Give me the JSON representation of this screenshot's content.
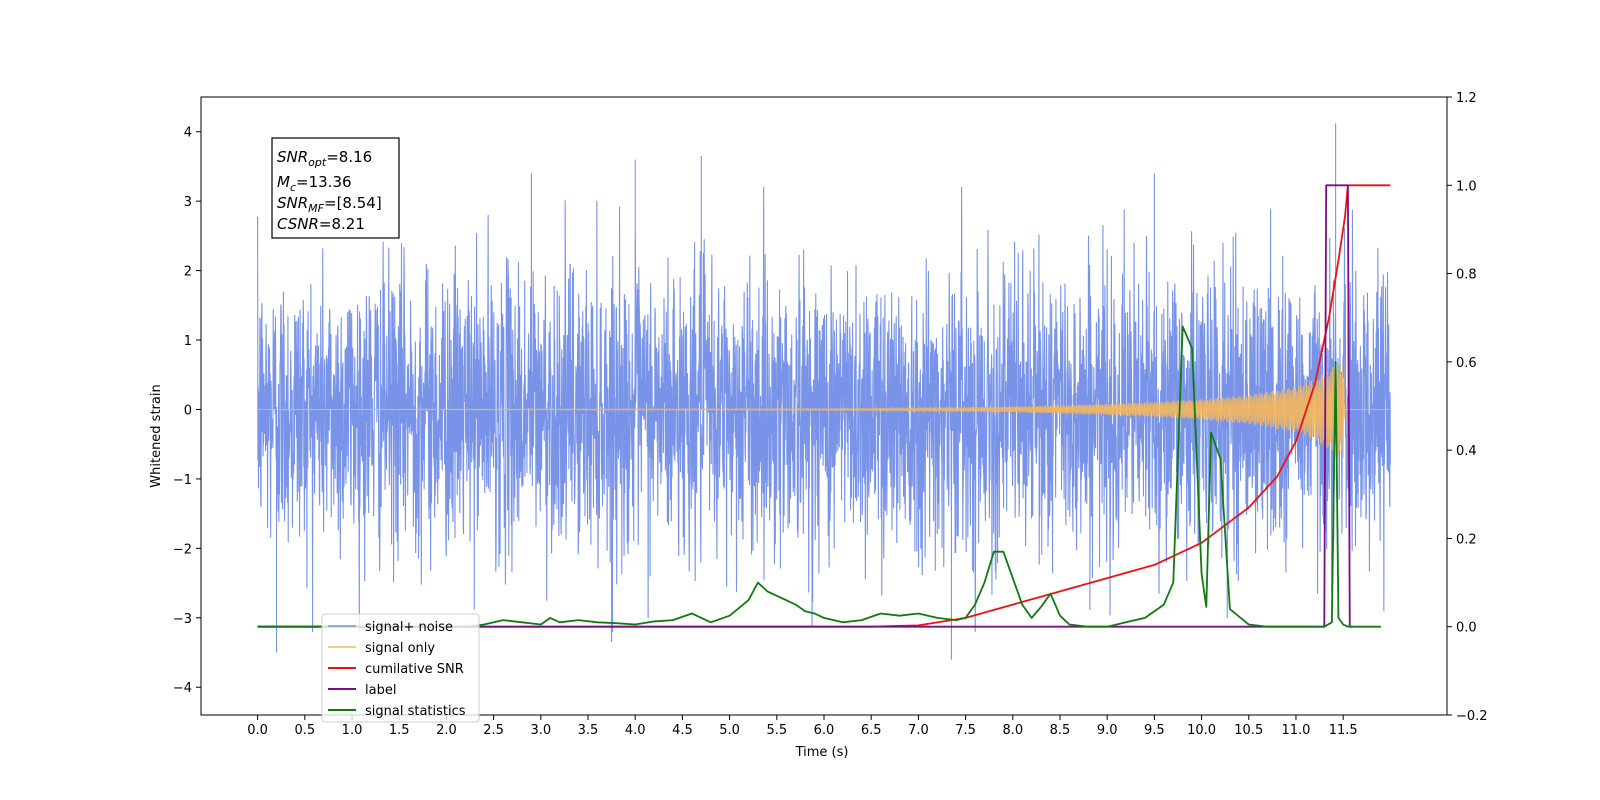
{
  "chart_data": {
    "type": "line",
    "xlabel": "Time (s)",
    "ylabel": "Whitened strain",
    "xlim": [
      -0.6,
      12.6
    ],
    "ylim": [
      -4.4,
      4.5
    ],
    "ylim_right": [
      -0.2,
      1.2
    ],
    "x_ticks": [
      0.0,
      0.5,
      1.0,
      1.5,
      2.0,
      2.5,
      3.0,
      3.5,
      4.0,
      4.5,
      5.0,
      5.5,
      6.0,
      6.5,
      7.0,
      7.5,
      8.0,
      8.5,
      9.0,
      9.5,
      10.0,
      10.5,
      11.0,
      11.5
    ],
    "x_tick_labels": [
      "0.0",
      "0.5",
      "1.0",
      "1.5",
      "2.0",
      "2.5",
      "3.0",
      "3.5",
      "4.0",
      "4.5",
      "5.0",
      "5.5",
      "6.0",
      "6.5",
      "7.0",
      "7.5",
      "8.0",
      "8.5",
      "9.0",
      "9.5",
      "10.0",
      "10.5",
      "11.0",
      "11.5"
    ],
    "y_ticks": [
      -4,
      -3,
      -2,
      -1,
      0,
      1,
      2,
      3,
      4
    ],
    "y_tick_labels": [
      "−4",
      "−3",
      "−2",
      "−1",
      "0",
      "1",
      "2",
      "3",
      "4"
    ],
    "y_right_ticks": [
      -0.2,
      0.0,
      0.2,
      0.4,
      0.6,
      0.8,
      1.0,
      1.2
    ],
    "y_right_tick_labels": [
      "−0.2",
      "0.0",
      "0.2",
      "0.4",
      "0.6",
      "0.8",
      "1.0",
      "1.2"
    ],
    "grid": false,
    "legend_placement": "lower-left",
    "info_box": {
      "snr_opt_main": "SNR",
      "snr_opt_sub": "opt",
      "snr_opt_value": "=8.16",
      "mc_main": "M",
      "mc_sub": "c",
      "mc_value": "=13.36",
      "snr_mf_main": "SNR",
      "snr_mf_sub": "MF",
      "snr_mf_value": "=[8.54]",
      "csnr_main": "CSNR",
      "csnr_value": "=8.21"
    },
    "series": [
      {
        "name": "signal+ noise",
        "axis": "left",
        "color": "#7893e8",
        "description": "whitened noise plus signal, roughly gaussian with std ~1 over t=0..12; sampled envelope",
        "x_range": [
          0.0,
          12.0
        ],
        "approx_std": 1.0,
        "extreme_peaks": [
          [
            2.9,
            3.4
          ],
          [
            4.0,
            3.6
          ],
          [
            4.7,
            3.65
          ],
          [
            9.5,
            3.4
          ],
          [
            11.42,
            4.12
          ],
          [
            0.2,
            -3.5
          ],
          [
            7.35,
            -3.6
          ],
          [
            3.75,
            -3.35
          ]
        ]
      },
      {
        "name": "signal only",
        "color": "#f5b85c",
        "axis": "left",
        "description": "chirp signal growing from ~0 to amplitude ~0.7 near t=11.5 then zero",
        "envelope": [
          [
            0.0,
            0.0
          ],
          [
            6.0,
            0.01
          ],
          [
            7.0,
            0.02
          ],
          [
            7.5,
            0.03
          ],
          [
            8.0,
            0.04
          ],
          [
            8.5,
            0.06
          ],
          [
            9.0,
            0.08
          ],
          [
            9.5,
            0.11
          ],
          [
            10.0,
            0.15
          ],
          [
            10.5,
            0.21
          ],
          [
            11.0,
            0.33
          ],
          [
            11.2,
            0.45
          ],
          [
            11.4,
            0.62
          ],
          [
            11.5,
            0.7
          ],
          [
            11.52,
            0.0
          ],
          [
            12.0,
            0.0
          ]
        ]
      },
      {
        "name": "cumilative SNR",
        "color": "#ee1111",
        "axis": "right",
        "x": [
          0.0,
          6.5,
          7.0,
          7.5,
          8.0,
          8.5,
          9.0,
          9.5,
          10.0,
          10.5,
          10.8,
          11.0,
          11.2,
          11.35,
          11.45,
          11.52,
          11.55,
          12.0
        ],
        "y": [
          0.0,
          0.0,
          0.003,
          0.02,
          0.05,
          0.08,
          0.11,
          0.14,
          0.19,
          0.27,
          0.34,
          0.42,
          0.55,
          0.7,
          0.83,
          0.93,
          1.0,
          1.0
        ]
      },
      {
        "name": "label",
        "color": "#7b0d84",
        "axis": "right",
        "x": [
          0.0,
          11.3,
          11.32,
          11.55,
          11.57,
          11.6
        ],
        "y": [
          0.0,
          0.0,
          1.0,
          1.0,
          0.0,
          0.0
        ]
      },
      {
        "name": "signal statistics",
        "color": "#117a11",
        "axis": "right",
        "x": [
          0.0,
          2.0,
          2.2,
          2.4,
          2.6,
          2.8,
          3.0,
          3.1,
          3.2,
          3.4,
          3.6,
          3.8,
          4.0,
          4.2,
          4.4,
          4.6,
          4.8,
          5.0,
          5.2,
          5.3,
          5.4,
          5.5,
          5.6,
          5.7,
          5.8,
          5.9,
          6.0,
          6.2,
          6.4,
          6.6,
          6.8,
          7.0,
          7.2,
          7.4,
          7.5,
          7.6,
          7.7,
          7.8,
          7.9,
          8.0,
          8.1,
          8.2,
          8.3,
          8.4,
          8.5,
          8.6,
          8.8,
          9.0,
          9.2,
          9.4,
          9.6,
          9.7,
          9.8,
          9.9,
          10.0,
          10.05,
          10.1,
          10.2,
          10.3,
          10.5,
          10.7,
          11.0,
          11.3,
          11.38,
          11.42,
          11.45,
          11.5,
          11.55,
          11.6,
          11.9
        ],
        "y": [
          0.0,
          0.0,
          0.0,
          0.005,
          0.015,
          0.01,
          0.005,
          0.02,
          0.01,
          0.015,
          0.01,
          0.008,
          0.005,
          0.012,
          0.015,
          0.03,
          0.01,
          0.025,
          0.06,
          0.1,
          0.08,
          0.07,
          0.06,
          0.05,
          0.035,
          0.03,
          0.02,
          0.01,
          0.015,
          0.03,
          0.025,
          0.03,
          0.02,
          0.015,
          0.02,
          0.05,
          0.1,
          0.17,
          0.17,
          0.11,
          0.05,
          0.02,
          0.045,
          0.075,
          0.025,
          0.005,
          0.0,
          0.0,
          0.01,
          0.02,
          0.05,
          0.1,
          0.68,
          0.63,
          0.12,
          0.045,
          0.44,
          0.38,
          0.04,
          0.005,
          0.0,
          0.0,
          0.0,
          0.01,
          0.6,
          0.02,
          0.005,
          0.0,
          0.0,
          0.0
        ]
      }
    ],
    "legend": [
      "signal+ noise",
      "signal only",
      "cumilative SNR",
      "label",
      "signal statistics"
    ]
  }
}
